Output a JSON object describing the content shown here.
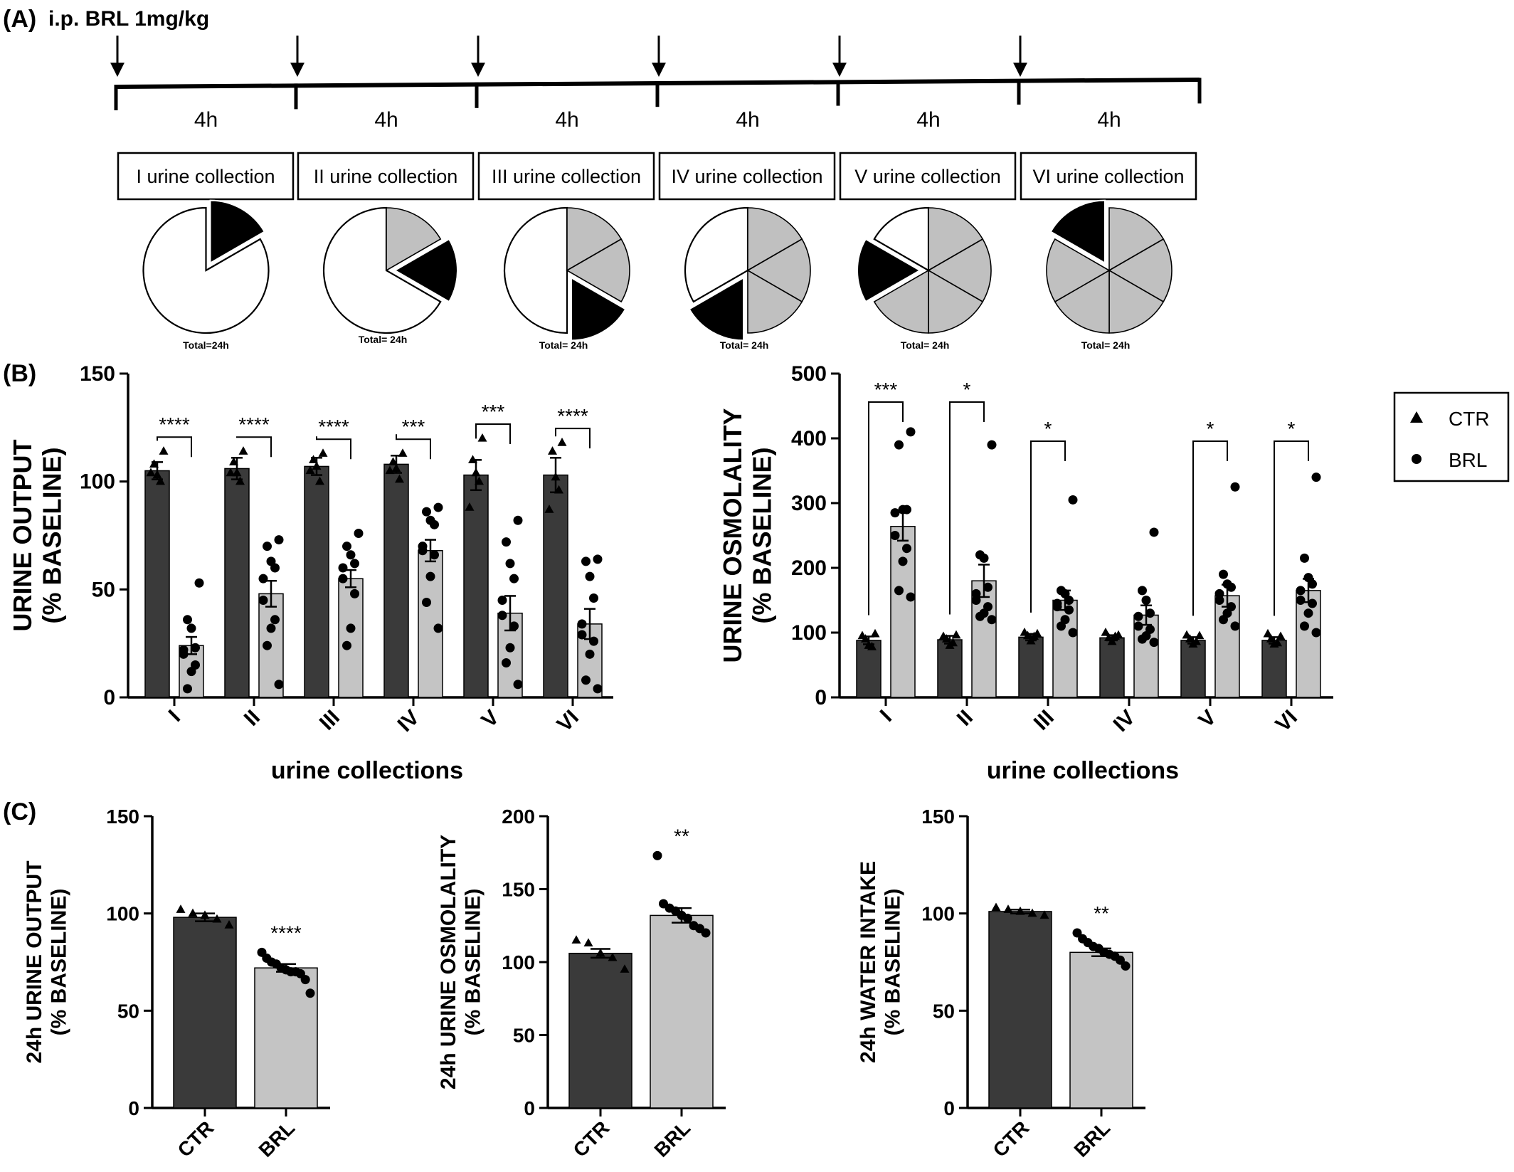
{
  "panel_a": {
    "label": "(A)",
    "injection_label": "i.p. BRL 1mg/kg",
    "interval_label": "4h",
    "collections": [
      "I urine collection",
      "II urine collection",
      "III urine collection",
      "IV urine collection",
      "V urine collection",
      "VI urine collection"
    ],
    "pie_total_label": "Total=24h",
    "pie_total_label_alt": "Total= 24h",
    "colors": {
      "current": "#000000",
      "done": "#c0c0c0",
      "pending": "#ffffff"
    }
  },
  "panel_b_label": "(B)",
  "panel_c_label": "(C)",
  "legend": {
    "items": [
      {
        "label": "CTR",
        "marker": "triangle"
      },
      {
        "label": "BRL",
        "marker": "circle"
      }
    ]
  },
  "colors": {
    "ctr_bar": "#3a3a3a",
    "brl_bar": "#c4c4c4",
    "points": "#000000"
  },
  "chart_data": [
    {
      "id": "b-left",
      "type": "bar",
      "ylabel_line1": "URINE OUTPUT",
      "ylabel_line2": "(% BASELINE)",
      "xlabel": "urine collections",
      "categories": [
        "I",
        "II",
        "III",
        "IV",
        "V",
        "VI"
      ],
      "ylim": [
        0,
        150
      ],
      "yticks": [
        0,
        50,
        100,
        150
      ],
      "series": [
        {
          "name": "CTR",
          "values": [
            105,
            106,
            107,
            108,
            103,
            103
          ],
          "sem": [
            4,
            5,
            4,
            4,
            7,
            8
          ],
          "points": [
            [
              114,
              108,
              103,
              100,
              104
            ],
            [
              114,
              109,
              104,
              100,
              104
            ],
            [
              113,
              110,
              107,
              100,
              105
            ],
            [
              113,
              109,
              106,
              101,
              105
            ],
            [
              120,
              110,
              104,
              100,
              88
            ],
            [
              118,
              114,
              102,
              96,
              87
            ]
          ]
        },
        {
          "name": "BRL",
          "values": [
            24,
            48,
            55,
            68,
            39,
            34
          ],
          "sem": [
            4,
            6,
            4,
            5,
            8,
            7
          ],
          "points": [
            [
              53,
              36,
              32,
              23,
              22,
              20,
              15,
              12,
              4
            ],
            [
              73,
              70,
              63,
              60,
              55,
              45,
              36,
              32,
              24,
              6
            ],
            [
              76,
              70,
              66,
              62,
              60,
              55,
              48,
              32,
              24
            ],
            [
              88,
              86,
              82,
              80,
              70,
              68,
              66,
              56,
              44,
              32
            ],
            [
              82,
              72,
              62,
              55,
              45,
              38,
              33,
              23,
              16,
              6
            ],
            [
              64,
              63,
              56,
              46,
              34,
              29,
              26,
              20,
              8,
              4
            ]
          ]
        }
      ],
      "significance": [
        "****",
        "****",
        "****",
        "***",
        "***",
        "****"
      ]
    },
    {
      "id": "b-right",
      "type": "bar",
      "ylabel_line1": "URINE OSMOLALITY",
      "ylabel_line2": "(% BASELINE)",
      "xlabel": "urine collections",
      "categories": [
        "I",
        "II",
        "III",
        "IV",
        "V",
        "VI"
      ],
      "ylim": [
        0,
        500
      ],
      "yticks": [
        0,
        100,
        200,
        300,
        400,
        500
      ],
      "series": [
        {
          "name": "CTR",
          "values": [
            88,
            89,
            93,
            92,
            88,
            88
          ],
          "sem": [
            6,
            6,
            5,
            4,
            5,
            5
          ],
          "points": [
            [
              98,
              90,
              80,
              78,
              95
            ],
            [
              96,
              90,
              80,
              84,
              94
            ],
            [
              98,
              95,
              87,
              94,
              100
            ],
            [
              96,
              92,
              86,
              94,
              100
            ],
            [
              95,
              90,
              82,
              86,
              96
            ],
            [
              94,
              90,
              82,
              84,
              98
            ]
          ]
        },
        {
          "name": "BRL",
          "values": [
            264,
            180,
            150,
            127,
            157,
            165
          ],
          "sem": [
            22,
            25,
            15,
            15,
            17,
            18
          ],
          "points": [
            [
              410,
              390,
              290,
              290,
              285,
              250,
              230,
              210,
              165,
              155
            ],
            [
              390,
              220,
              215,
              170,
              160,
              150,
              140,
              130,
              125,
              120
            ],
            [
              305,
              165,
              160,
              150,
              145,
              140,
              135,
              120,
              110,
              100
            ],
            [
              255,
              165,
              150,
              130,
              125,
              110,
              105,
              95,
              90,
              85
            ],
            [
              325,
              190,
              175,
              170,
              160,
              150,
              140,
              130,
              120,
              110
            ],
            [
              340,
              215,
              185,
              175,
              165,
              150,
              145,
              130,
              110,
              100
            ]
          ]
        }
      ],
      "significance": [
        "***",
        "*",
        "*",
        "",
        "*",
        "*"
      ]
    },
    {
      "id": "c-1",
      "type": "bar",
      "ylabel_line1": "24h URINE OUTPUT",
      "ylabel_line2": "(% BASELINE)",
      "categories": [
        "CTR",
        "BRL"
      ],
      "ylim": [
        0,
        150
      ],
      "yticks": [
        0,
        50,
        100,
        150
      ],
      "values": [
        98,
        72
      ],
      "sem": [
        2,
        2
      ],
      "points": [
        [
          102,
          100,
          99,
          97,
          94
        ],
        [
          80,
          77,
          75,
          74,
          72,
          71,
          70,
          70,
          69,
          66,
          59
        ]
      ],
      "significance": "****"
    },
    {
      "id": "c-2",
      "type": "bar",
      "ylabel_line1": "24h URINE OSMOLALITY",
      "ylabel_line2": "(% BASELINE)",
      "categories": [
        "CTR",
        "BRL"
      ],
      "ylim": [
        0,
        200
      ],
      "yticks": [
        0,
        50,
        100,
        150,
        200
      ],
      "values": [
        106,
        132
      ],
      "sem": [
        3,
        5
      ],
      "points": [
        [
          115,
          113,
          106,
          103,
          95
        ],
        [
          173,
          140,
          137,
          135,
          132,
          130,
          125,
          123,
          120
        ]
      ],
      "significance": "**"
    },
    {
      "id": "c-3",
      "type": "bar",
      "ylabel_line1": "24h WATER INTAKE",
      "ylabel_line2": "(% BASELINE)",
      "categories": [
        "CTR",
        "BRL"
      ],
      "ylim": [
        0,
        150
      ],
      "yticks": [
        0,
        50,
        100,
        150
      ],
      "values": [
        101,
        80
      ],
      "sem": [
        1,
        2
      ],
      "points": [
        [
          103,
          102,
          101,
          100,
          99
        ],
        [
          90,
          87,
          85,
          83,
          82,
          80,
          79,
          78,
          76,
          73
        ]
      ],
      "significance": "**"
    }
  ]
}
